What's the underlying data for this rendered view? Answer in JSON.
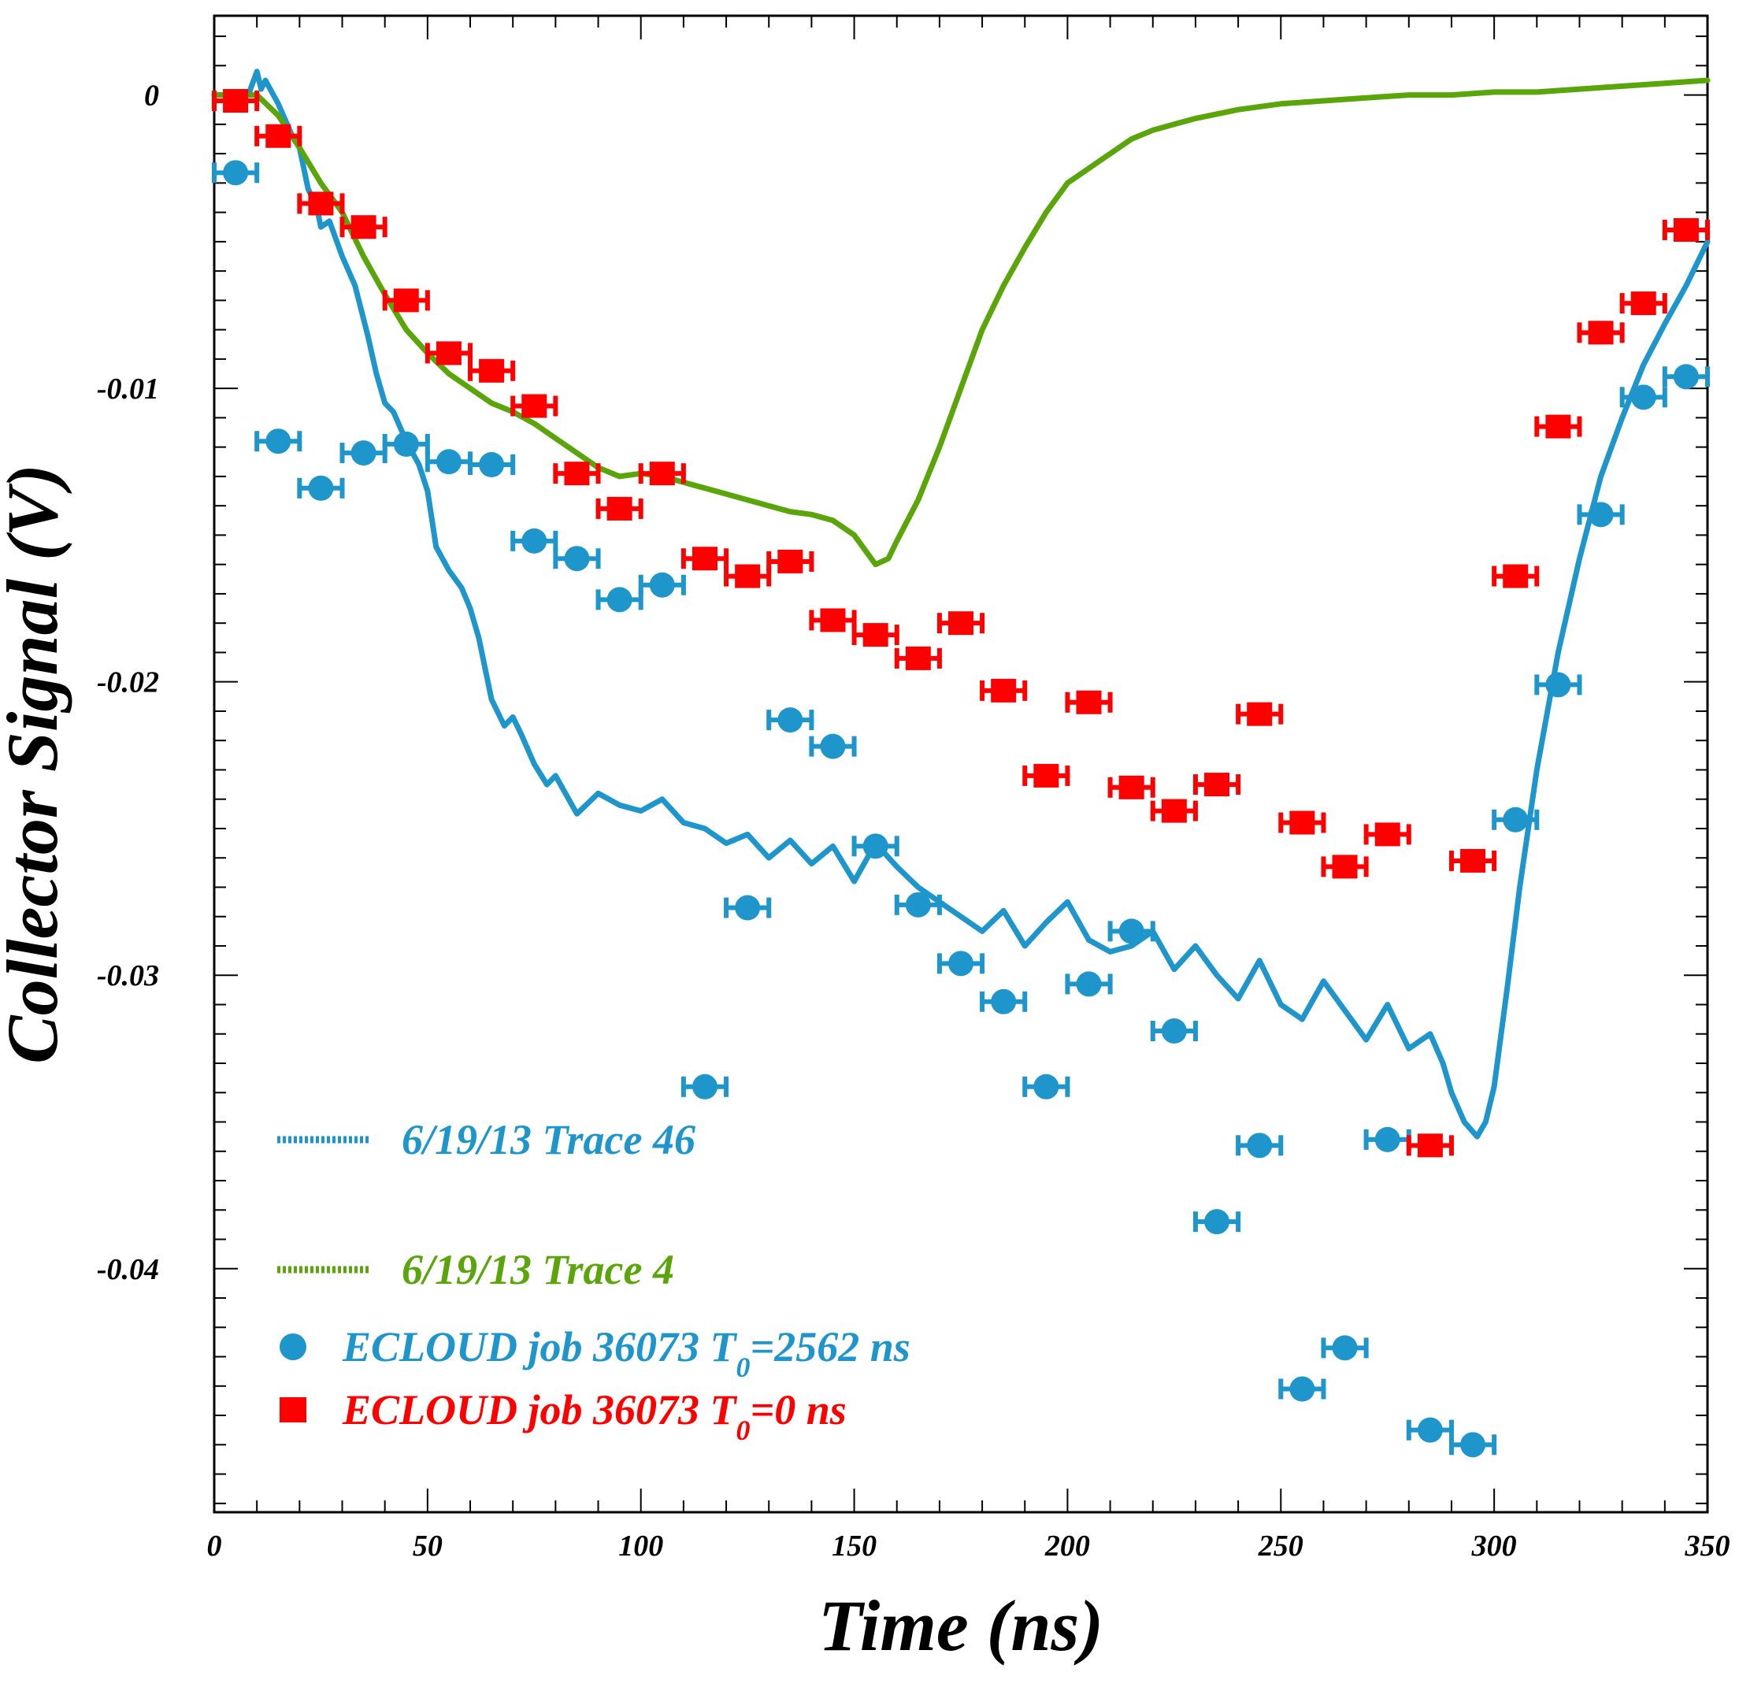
{
  "chart_data": {
    "type": "scatter",
    "xlabel": "Time (ns)",
    "ylabel": "Collector Signal (V)",
    "xlim": [
      0,
      350
    ],
    "ylim": [
      -0.0483,
      0.0027
    ],
    "x_ticks": [
      0,
      50,
      100,
      150,
      200,
      250,
      300,
      350
    ],
    "x_tick_labels": [
      "0",
      "50",
      "100",
      "150",
      "200",
      "250",
      "300",
      "350"
    ],
    "y_ticks": [
      0,
      -0.01,
      -0.02,
      -0.03,
      -0.04
    ],
    "y_tick_labels": [
      "0",
      "-0.01",
      "-0.02",
      "-0.03",
      "-0.04"
    ],
    "grid": false,
    "legend_position": "bottom-left",
    "colors": {
      "blue": "#1e96cc",
      "green": "#5aa50a",
      "red": "#ff0000"
    },
    "legend": [
      {
        "key": "trace46",
        "marker": "line",
        "color": "#1e96cc",
        "text": "6/19/13 Trace 46"
      },
      {
        "key": "trace4",
        "marker": "line",
        "color": "#5aa50a",
        "text": "6/19/13 Trace 4"
      },
      {
        "key": "ecloud_t2562",
        "marker": "circle",
        "color": "#1e96cc",
        "text_main": "ECLOUD job 36073 T",
        "text_sub": "0",
        "text_tail": "=2562 ns"
      },
      {
        "key": "ecloud_t0",
        "marker": "square",
        "color": "#ff0000",
        "text_main": "ECLOUD job 36073 T",
        "text_sub": "0",
        "text_tail": "=0 ns"
      }
    ],
    "series": [
      {
        "key": "trace46",
        "type": "line",
        "color": "#1e96cc",
        "x": [
          0,
          5,
          8,
          10,
          11,
          12,
          15,
          18,
          20,
          22,
          24,
          25,
          27,
          30,
          33,
          36,
          38,
          40,
          42,
          45,
          48,
          50,
          52,
          55,
          58,
          60,
          62,
          65,
          68,
          70,
          72,
          75,
          78,
          80,
          85,
          90,
          95,
          100,
          105,
          110,
          115,
          120,
          125,
          130,
          135,
          140,
          145,
          150,
          155,
          160,
          165,
          170,
          175,
          180,
          185,
          190,
          195,
          200,
          205,
          210,
          215,
          220,
          225,
          230,
          235,
          240,
          245,
          250,
          255,
          260,
          265,
          270,
          275,
          280,
          285,
          288,
          290,
          293,
          296,
          298,
          300,
          303,
          306,
          310,
          315,
          320,
          325,
          330,
          335,
          340,
          345,
          350
        ],
        "y": [
          0,
          0,
          0,
          0.0008,
          0.0002,
          0.0005,
          -0.0003,
          -0.0013,
          -0.0018,
          -0.0032,
          -0.0038,
          -0.0045,
          -0.0043,
          -0.0055,
          -0.0065,
          -0.0082,
          -0.0095,
          -0.0105,
          -0.0108,
          -0.0118,
          -0.0126,
          -0.0135,
          -0.0154,
          -0.0162,
          -0.0168,
          -0.0175,
          -0.0185,
          -0.0206,
          -0.0215,
          -0.0212,
          -0.0218,
          -0.0228,
          -0.0235,
          -0.0232,
          -0.0245,
          -0.0238,
          -0.0242,
          -0.0244,
          -0.024,
          -0.0248,
          -0.025,
          -0.0255,
          -0.0252,
          -0.026,
          -0.0254,
          -0.0262,
          -0.0256,
          -0.0268,
          -0.0255,
          -0.0263,
          -0.027,
          -0.0275,
          -0.028,
          -0.0285,
          -0.0278,
          -0.029,
          -0.0282,
          -0.0275,
          -0.0288,
          -0.0292,
          -0.029,
          -0.0285,
          -0.0298,
          -0.029,
          -0.03,
          -0.0308,
          -0.0295,
          -0.031,
          -0.0315,
          -0.0302,
          -0.0312,
          -0.0322,
          -0.031,
          -0.0325,
          -0.032,
          -0.033,
          -0.034,
          -0.035,
          -0.0355,
          -0.035,
          -0.0338,
          -0.0305,
          -0.027,
          -0.023,
          -0.019,
          -0.0158,
          -0.013,
          -0.011,
          -0.0092,
          -0.0078,
          -0.0065,
          -0.005
        ]
      },
      {
        "key": "trace4",
        "type": "line",
        "color": "#5aa50a",
        "x": [
          0,
          5,
          8,
          10,
          15,
          20,
          25,
          30,
          35,
          40,
          45,
          50,
          55,
          60,
          65,
          70,
          75,
          80,
          85,
          90,
          95,
          100,
          105,
          110,
          115,
          120,
          125,
          130,
          135,
          140,
          145,
          150,
          155,
          158,
          160,
          165,
          170,
          175,
          180,
          185,
          190,
          195,
          200,
          205,
          210,
          215,
          220,
          225,
          230,
          240,
          250,
          260,
          270,
          280,
          290,
          300,
          310,
          320,
          330,
          340,
          350
        ],
        "y": [
          0,
          0,
          0,
          0,
          -0.0007,
          -0.0018,
          -0.003,
          -0.004,
          -0.0055,
          -0.0068,
          -0.008,
          -0.0088,
          -0.0095,
          -0.01,
          -0.0105,
          -0.0108,
          -0.0112,
          -0.0117,
          -0.0122,
          -0.0127,
          -0.013,
          -0.0129,
          -0.013,
          -0.0132,
          -0.0134,
          -0.0136,
          -0.0138,
          -0.014,
          -0.0142,
          -0.0143,
          -0.0145,
          -0.015,
          -0.016,
          -0.0158,
          -0.0152,
          -0.0138,
          -0.012,
          -0.01,
          -0.008,
          -0.0065,
          -0.0052,
          -0.004,
          -0.003,
          -0.0025,
          -0.002,
          -0.0015,
          -0.0012,
          -0.001,
          -0.0008,
          -0.0005,
          -0.0003,
          -0.0002,
          -0.0001,
          0,
          0,
          0.0001,
          0.0001,
          0.0002,
          0.0003,
          0.0004,
          0.0005
        ]
      },
      {
        "key": "ecloud_t2562",
        "type": "scatter",
        "marker": "circle",
        "color": "#1e96cc",
        "x_err": 5,
        "x": [
          5,
          15,
          25,
          35,
          45,
          55,
          65,
          75,
          85,
          95,
          105,
          115,
          125,
          135,
          145,
          155,
          165,
          175,
          185,
          195,
          205,
          215,
          225,
          235,
          245,
          255,
          265,
          275,
          285,
          295,
          305,
          315,
          325,
          335,
          345
        ],
        "y": [
          -0.00265,
          -0.0118,
          -0.0134,
          -0.0122,
          -0.0119,
          -0.0125,
          -0.0126,
          -0.0152,
          -0.0158,
          -0.0172,
          -0.0167,
          -0.0338,
          -0.0277,
          -0.0213,
          -0.0222,
          -0.0256,
          -0.0276,
          -0.0296,
          -0.0309,
          -0.0338,
          -0.0303,
          -0.0285,
          -0.0319,
          -0.0384,
          -0.0358,
          -0.0441,
          -0.0427,
          -0.0356,
          -0.0455,
          -0.046,
          -0.0247,
          -0.0201,
          -0.0143,
          -0.0103,
          -0.0096
        ]
      },
      {
        "key": "ecloud_t0",
        "type": "scatter",
        "marker": "square",
        "color": "#ff0000",
        "x_err": 5,
        "x": [
          5,
          15,
          25,
          35,
          45,
          55,
          65,
          75,
          85,
          95,
          105,
          115,
          125,
          135,
          145,
          155,
          165,
          175,
          185,
          195,
          205,
          215,
          225,
          235,
          245,
          255,
          265,
          275,
          285,
          295,
          305,
          315,
          325,
          335,
          345
        ],
        "y": [
          -0.0002,
          -0.0014,
          -0.0037,
          -0.0045,
          -0.007,
          -0.0088,
          -0.0094,
          -0.0106,
          -0.0129,
          -0.0141,
          -0.0129,
          -0.0158,
          -0.0164,
          -0.0159,
          -0.0179,
          -0.0184,
          -0.0192,
          -0.018,
          -0.0203,
          -0.0232,
          -0.0207,
          -0.0236,
          -0.0244,
          -0.0235,
          -0.0211,
          -0.0248,
          -0.0263,
          -0.0252,
          -0.0358,
          -0.0261,
          -0.0164,
          -0.0113,
          -0.0081,
          -0.0071,
          -0.0046
        ]
      }
    ]
  }
}
